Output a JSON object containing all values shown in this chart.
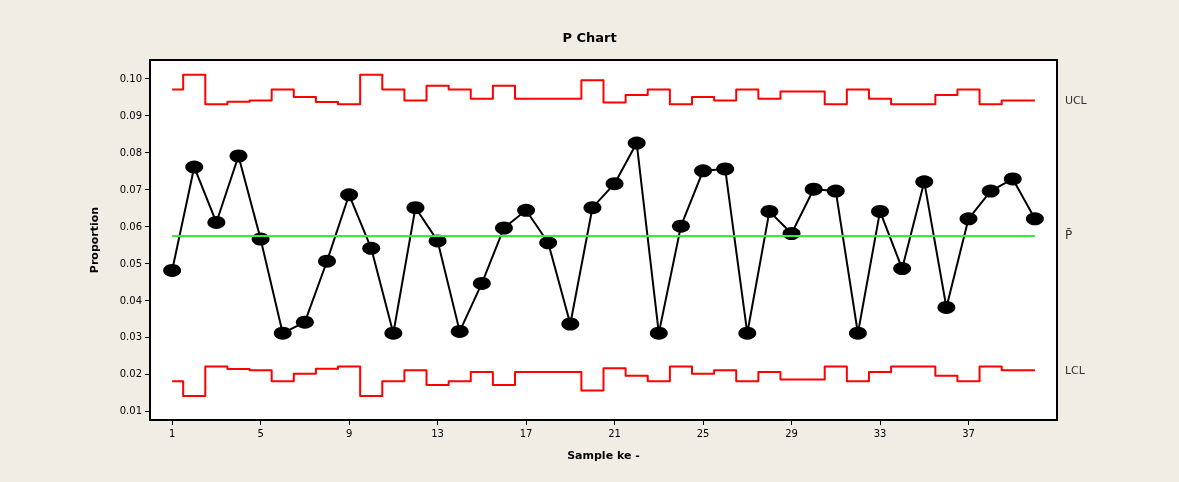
{
  "chart_data": {
    "type": "line",
    "title": "P Chart",
    "xlabel": "Sample ke -",
    "ylabel": "Proportion",
    "x": [
      1,
      2,
      3,
      4,
      5,
      6,
      7,
      8,
      9,
      10,
      11,
      12,
      13,
      14,
      15,
      16,
      17,
      18,
      19,
      20,
      21,
      22,
      23,
      24,
      25,
      26,
      27,
      28,
      29,
      30,
      31,
      32,
      33,
      34,
      35,
      36,
      37,
      38,
      39,
      40
    ],
    "series": [
      {
        "name": "UCL",
        "type": "step",
        "color": "#ff0000",
        "values": [
          0.097,
          0.101,
          0.093,
          0.0937,
          0.094,
          0.097,
          0.095,
          0.0936,
          0.093,
          0.101,
          0.097,
          0.094,
          0.098,
          0.097,
          0.0945,
          0.098,
          0.0945,
          0.0945,
          0.0945,
          0.0995,
          0.0935,
          0.0955,
          0.097,
          0.093,
          0.095,
          0.094,
          0.097,
          0.0945,
          0.0965,
          0.0965,
          0.093,
          0.097,
          0.0945,
          0.093,
          0.093,
          0.0955,
          0.097,
          0.093,
          0.094,
          0.094
        ]
      },
      {
        "name": "LCL",
        "type": "step",
        "color": "#ff0000",
        "values": [
          0.018,
          0.014,
          0.022,
          0.0213,
          0.021,
          0.018,
          0.02,
          0.0214,
          0.022,
          0.014,
          0.018,
          0.021,
          0.017,
          0.018,
          0.0205,
          0.017,
          0.0205,
          0.0205,
          0.0205,
          0.0155,
          0.0215,
          0.0195,
          0.018,
          0.022,
          0.02,
          0.021,
          0.018,
          0.0205,
          0.0185,
          0.0185,
          0.022,
          0.018,
          0.0205,
          0.022,
          0.022,
          0.0195,
          0.018,
          0.022,
          0.021,
          0.021
        ]
      },
      {
        "color": "#000000",
        "marker": "circle",
        "values": [
          0.048,
          0.076,
          0.061,
          0.079,
          0.0565,
          0.031,
          0.034,
          0.0505,
          0.0685,
          0.054,
          0.031,
          0.065,
          0.056,
          0.0315,
          0.0445,
          0.0595,
          0.0643,
          0.0555,
          0.0335,
          0.065,
          0.0715,
          0.0825,
          0.031,
          0.06,
          0.075,
          0.0755,
          0.031,
          0.064,
          0.058,
          0.07,
          0.0695,
          0.031,
          0.064,
          0.0485,
          0.072,
          0.038,
          0.062,
          0.0695,
          0.0728,
          0.062
        ]
      }
    ],
    "ref_lines": [
      {
        "axis": "y",
        "value": 0.0575,
        "label": "P̄",
        "color": "#33ee33"
      }
    ],
    "xlim": [
      0,
      41
    ],
    "xticks": [
      1,
      5,
      9,
      13,
      17,
      21,
      25,
      29,
      33,
      37
    ],
    "ylim": [
      0.0075,
      0.105
    ],
    "yticks": [
      {
        "value": 0.01,
        "label": "0.01"
      },
      {
        "value": 0.02,
        "label": "0.02"
      },
      {
        "value": 0.03,
        "label": "0.03"
      },
      {
        "value": 0.04,
        "label": "0.04"
      },
      {
        "value": 0.05,
        "label": "0.05"
      },
      {
        "value": 0.06,
        "label": "0.06"
      },
      {
        "value": 0.07,
        "label": "0.07"
      },
      {
        "value": 0.08,
        "label": "0.08"
      },
      {
        "value": 0.09,
        "label": "0.09"
      },
      {
        "value": 0.1,
        "label": "0.10"
      }
    ],
    "grid": false,
    "legend": false
  }
}
